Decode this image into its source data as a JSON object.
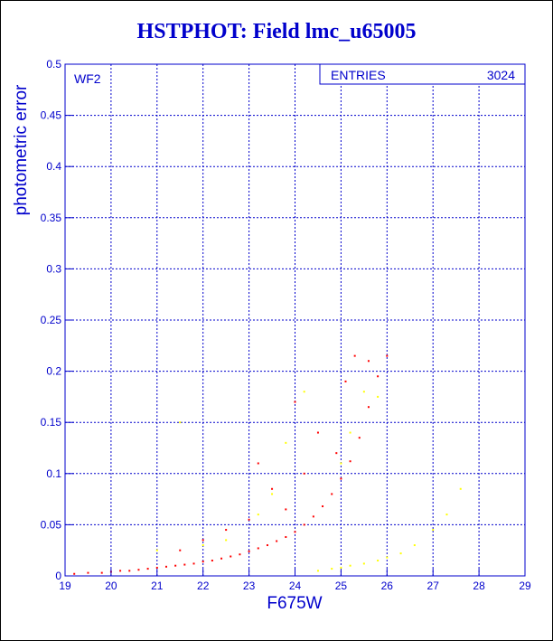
{
  "title": "HSTPHOT: Field lmc_u65005",
  "colors": {
    "axis": "#0000cc",
    "grid": "#0000cc",
    "main": "#ff0000",
    "secondary": "#ffff00"
  },
  "stats_box": {
    "label": "ENTRIES",
    "value": "3024"
  },
  "chart_data": {
    "type": "scatter",
    "xlabel": "F675W",
    "ylabel": "photometric error",
    "xlim": [
      19,
      29
    ],
    "ylim": [
      0,
      0.5
    ],
    "xticks": [
      "19",
      "20",
      "21",
      "22",
      "23",
      "24",
      "25",
      "26",
      "27",
      "28",
      "29"
    ],
    "yticks": [
      "0",
      "0.05",
      "0.1",
      "0.15",
      "0.2",
      "0.25",
      "0.3",
      "0.35",
      "0.4",
      "0.45",
      "0.5"
    ],
    "grid": true,
    "annotations": [
      "WF2"
    ],
    "series": [
      {
        "color": "#ff0000",
        "points": [
          [
            19.2,
            0.002
          ],
          [
            19.5,
            0.003
          ],
          [
            19.8,
            0.003
          ],
          [
            20.0,
            0.004
          ],
          [
            20.2,
            0.005
          ],
          [
            20.4,
            0.005
          ],
          [
            20.6,
            0.006
          ],
          [
            20.8,
            0.007
          ],
          [
            21.0,
            0.008
          ],
          [
            21.2,
            0.009
          ],
          [
            21.4,
            0.01
          ],
          [
            21.6,
            0.011
          ],
          [
            21.8,
            0.012
          ],
          [
            22.0,
            0.014
          ],
          [
            22.2,
            0.015
          ],
          [
            22.4,
            0.017
          ],
          [
            22.6,
            0.019
          ],
          [
            22.8,
            0.021
          ],
          [
            23.0,
            0.024
          ],
          [
            23.2,
            0.027
          ],
          [
            23.4,
            0.03
          ],
          [
            23.6,
            0.034
          ],
          [
            23.8,
            0.038
          ],
          [
            24.0,
            0.043
          ],
          [
            24.2,
            0.05
          ],
          [
            24.4,
            0.058
          ],
          [
            24.6,
            0.068
          ],
          [
            24.8,
            0.08
          ],
          [
            25.0,
            0.095
          ],
          [
            25.2,
            0.112
          ],
          [
            25.4,
            0.135
          ],
          [
            25.6,
            0.165
          ],
          [
            25.8,
            0.195
          ],
          [
            26.0,
            0.215
          ],
          [
            22.5,
            0.045
          ],
          [
            23.0,
            0.055
          ],
          [
            23.5,
            0.085
          ],
          [
            23.8,
            0.065
          ],
          [
            24.2,
            0.1
          ],
          [
            24.5,
            0.14
          ],
          [
            24.0,
            0.17
          ],
          [
            25.3,
            0.215
          ],
          [
            25.6,
            0.21
          ],
          [
            25.1,
            0.19
          ],
          [
            24.9,
            0.12
          ],
          [
            22.0,
            0.035
          ],
          [
            21.5,
            0.025
          ],
          [
            23.2,
            0.11
          ]
        ]
      },
      {
        "color": "#ffff00",
        "points": [
          [
            24.5,
            0.005
          ],
          [
            24.8,
            0.007
          ],
          [
            25.0,
            0.008
          ],
          [
            25.2,
            0.01
          ],
          [
            25.5,
            0.012
          ],
          [
            25.8,
            0.015
          ],
          [
            26.0,
            0.018
          ],
          [
            26.3,
            0.022
          ],
          [
            26.6,
            0.03
          ],
          [
            27.0,
            0.045
          ],
          [
            27.3,
            0.06
          ],
          [
            27.6,
            0.085
          ],
          [
            21.0,
            0.025
          ],
          [
            22.0,
            0.03
          ],
          [
            22.5,
            0.035
          ],
          [
            23.2,
            0.06
          ],
          [
            23.5,
            0.08
          ],
          [
            21.5,
            0.15
          ],
          [
            24.2,
            0.18
          ],
          [
            25.5,
            0.18
          ],
          [
            25.8,
            0.175
          ],
          [
            25.2,
            0.14
          ],
          [
            25.0,
            0.11
          ],
          [
            23.8,
            0.13
          ]
        ]
      }
    ]
  }
}
